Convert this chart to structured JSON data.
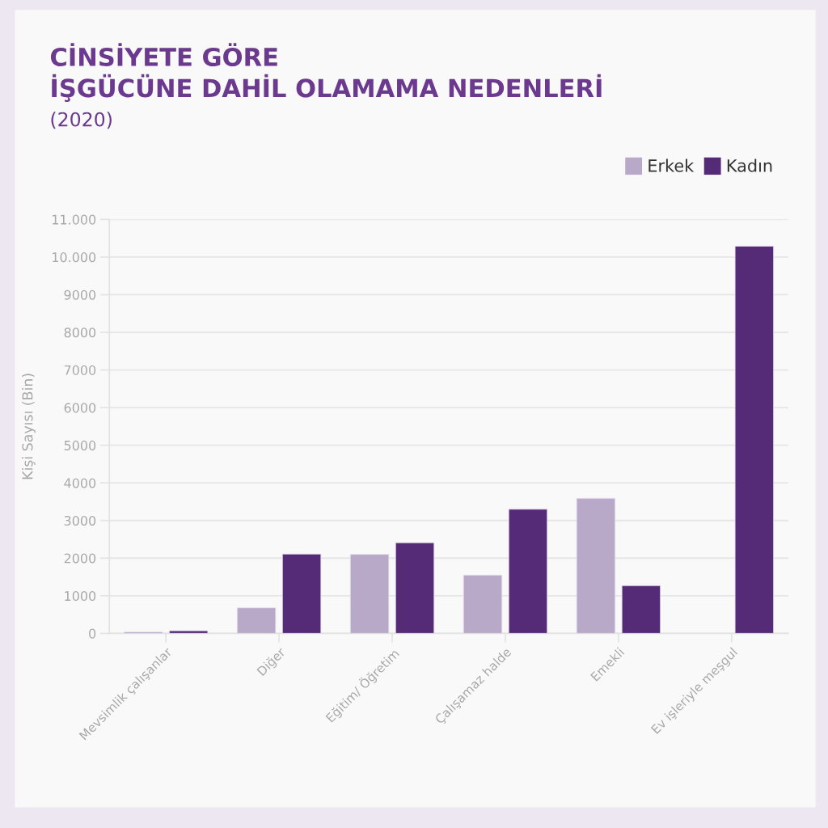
{
  "chart_data": {
    "type": "bar",
    "title": "CİNSİYETE GÖRE\nİŞGÜCÜNE DAHİL OLAMAMA NEDENLERİ",
    "subtitle": "(2020)",
    "ylabel": "Kişi Sayısı (Bin)",
    "categories": [
      "Mevsimlik çalışanlar",
      "Diğer",
      "Eğitim/ Öğretim",
      "Çalışamaz halde",
      "Emekli",
      "Ev işleriyle meşgul"
    ],
    "series": [
      {
        "name": "Erkek",
        "color": "#b9a9c9",
        "values": [
          40,
          680,
          2100,
          1550,
          3590,
          null
        ]
      },
      {
        "name": "Kadın",
        "color": "#552b78",
        "values": [
          70,
          2110,
          2410,
          3300,
          1270,
          10290
        ]
      }
    ],
    "ylim": [
      0,
      11000
    ],
    "yticks": [
      0,
      1000,
      2000,
      3000,
      4000,
      5000,
      6000,
      7000,
      8000,
      9000,
      {
        "value": 10000,
        "label": "10.000"
      },
      {
        "value": 11000,
        "label": "11.000"
      }
    ],
    "grid": "y",
    "legend": "top right"
  }
}
